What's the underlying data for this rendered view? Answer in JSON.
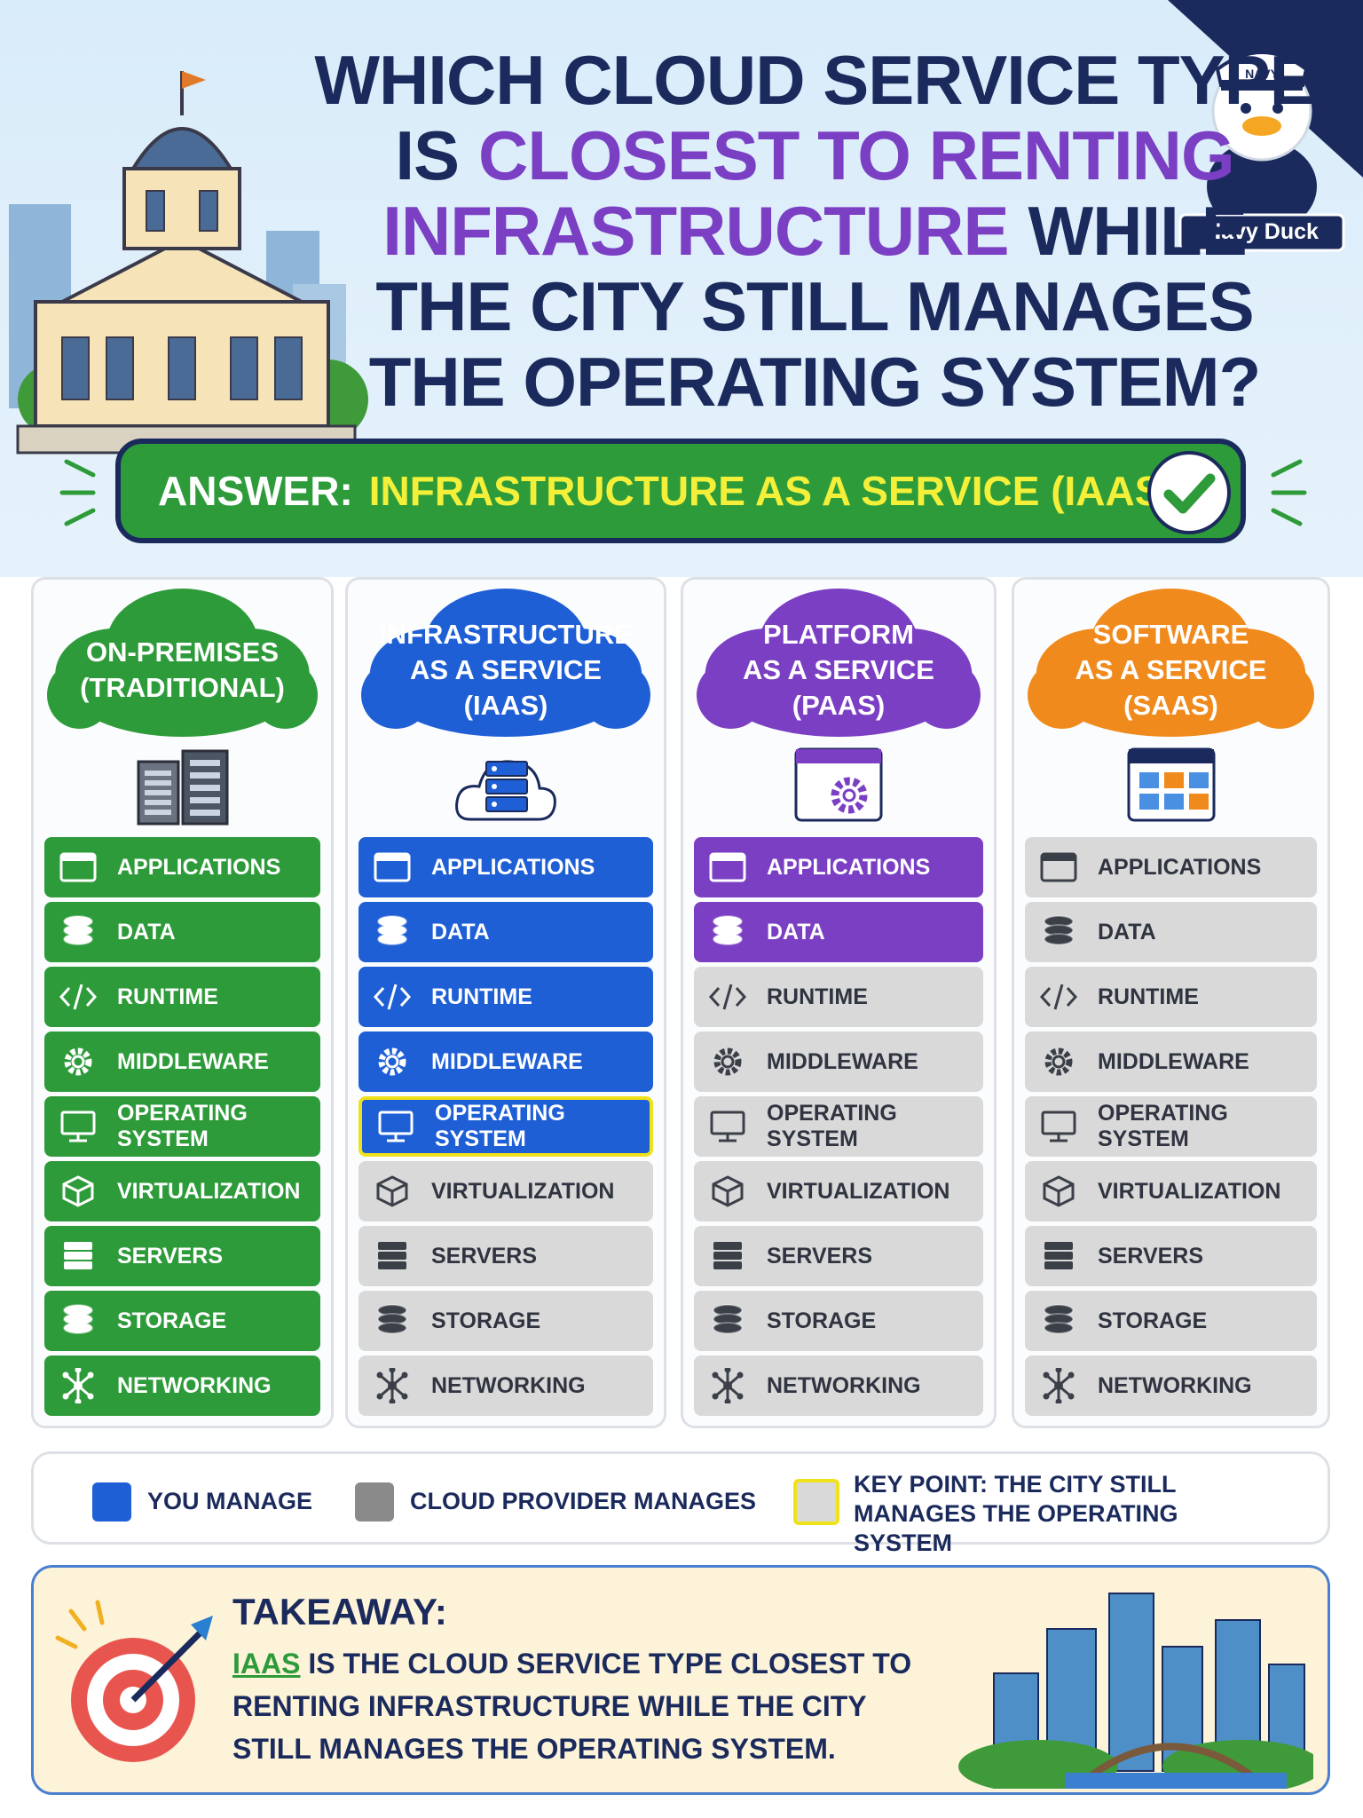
{
  "badge": {
    "hat": "NAVY",
    "name": "Navy Duck"
  },
  "title": {
    "lines": [
      [
        {
          "text": "WHICH CLOUD SERVICE TYPE",
          "accent": false
        }
      ],
      [
        {
          "text": "IS",
          "accent": false
        },
        {
          "text": "CLOSEST TO RENTING",
          "accent": true
        }
      ],
      [
        {
          "text": "INFRASTRUCTURE",
          "accent": true
        },
        {
          "text": "WHILE",
          "accent": false
        }
      ],
      [
        {
          "text": "THE CITY STILL MANAGES",
          "accent": false
        }
      ],
      [
        {
          "text": "THE OPERATING SYSTEM?",
          "accent": false
        }
      ]
    ]
  },
  "answer": {
    "label": "ANSWER:",
    "value": "INFRASTRUCTURE AS A SERVICE (IAAS)"
  },
  "layers": [
    "APPLICATIONS",
    "DATA",
    "RUNTIME",
    "MIDDLEWARE",
    "OPERATING SYSTEM",
    "VIRTUALIZATION",
    "SERVERS",
    "STORAGE",
    "NETWORKING"
  ],
  "columns": [
    {
      "title": [
        "ON-PREMISES",
        "(TRADITIONAL)"
      ],
      "color": "#2e9b3a",
      "you_manage": 9
    },
    {
      "title": [
        "INFRASTRUCTURE",
        "AS A SERVICE",
        "(IAAS)"
      ],
      "color": "#1f5fd6",
      "you_manage": 5,
      "highlight_layer": 4
    },
    {
      "title": [
        "PLATFORM",
        "AS A SERVICE",
        "(PAAS)"
      ],
      "color": "#7b3fc4",
      "you_manage": 2
    },
    {
      "title": [
        "SOFTWARE",
        "AS A SERVICE",
        "(SAAS)"
      ],
      "color": "#f08a1c",
      "you_manage": 0
    }
  ],
  "legend": {
    "you_manage": "YOU MANAGE",
    "provider_manages": "CLOUD PROVIDER MANAGES",
    "key_point": "KEY POINT: THE CITY STILL MANAGES THE OPERATING SYSTEM"
  },
  "takeaway": {
    "heading": "TAKEAWAY:",
    "highlight": "IAAS",
    "body": "IS THE CLOUD SERVICE TYPE CLOSEST TO RENTING INFRASTRUCTURE WHILE THE CITY STILL MANAGES THE OPERATING SYSTEM."
  }
}
